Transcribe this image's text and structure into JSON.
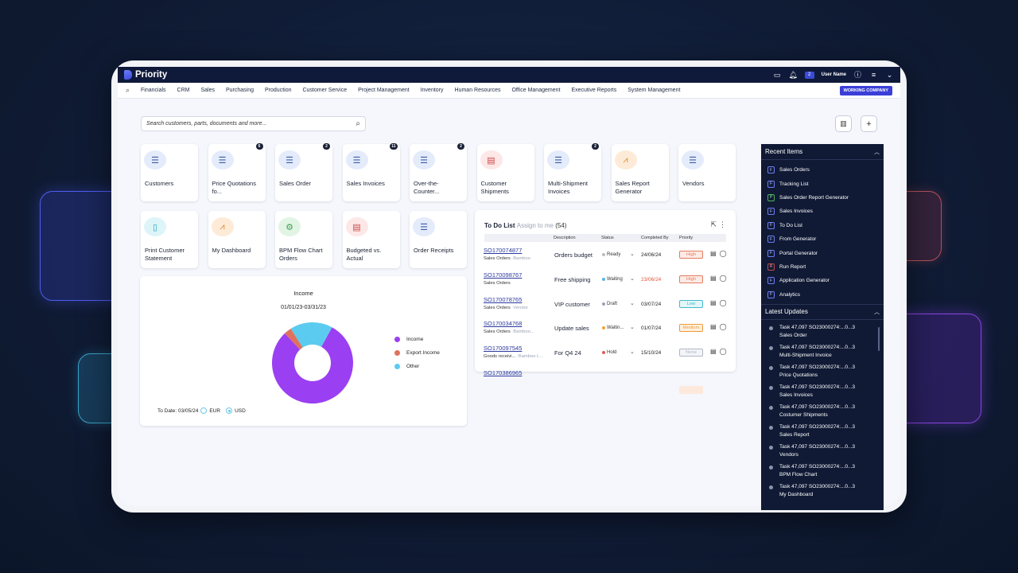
{
  "app": {
    "name": "Priority",
    "user": "User Name",
    "notif_count": "2"
  },
  "menu": {
    "items": [
      "Financials",
      "CRM",
      "Sales",
      "Purchasing",
      "Production",
      "Customer Service",
      "Project Management",
      "Inventory",
      "Human Resources",
      "Office Management",
      "Executive Reports",
      "System Management"
    ],
    "company": "WORKING COMPANY"
  },
  "search": {
    "placeholder": "Search customers, parts, documents and more..."
  },
  "tiles": [
    {
      "label": "Customers",
      "badge": "",
      "icon": "list-icon",
      "color": "blue"
    },
    {
      "label": "Price Quotations fo...",
      "badge": "6",
      "icon": "list-icon",
      "color": "blue"
    },
    {
      "label": "Sales Order",
      "badge": "2",
      "icon": "list-icon",
      "color": "blue"
    },
    {
      "label": "Sales Invoices",
      "badge": "11",
      "icon": "list-icon",
      "color": "blue"
    },
    {
      "label": "Over-the-Counter...",
      "badge": "2",
      "icon": "list-icon",
      "color": "blue"
    },
    {
      "label": "Customer Shipments",
      "badge": "",
      "icon": "report-icon",
      "color": "red"
    },
    {
      "label": "Multi-Shipment Invoices",
      "badge": "2",
      "icon": "list-icon",
      "color": "blue"
    },
    {
      "label": "Sales Report Generator",
      "badge": "",
      "icon": "chart-icon",
      "color": "orange"
    },
    {
      "label": "Vendors",
      "badge": "",
      "icon": "list-icon",
      "color": "blue"
    },
    {
      "label": "Print Customer Statement",
      "badge": "",
      "icon": "document-icon",
      "color": "cyan"
    },
    {
      "label": "My Dashboard",
      "badge": "",
      "icon": "chart-icon",
      "color": "orange"
    },
    {
      "label": "BPM Flow Chart Orders",
      "badge": "",
      "icon": "gear-icon",
      "color": "green"
    },
    {
      "label": "Budgeted vs. Actual",
      "badge": "",
      "icon": "report-icon",
      "color": "red"
    },
    {
      "label": "Order Receipts",
      "badge": "",
      "icon": "list-icon",
      "color": "blue"
    }
  ],
  "income": {
    "title": "Income",
    "range": "01/01/23-03/31/23",
    "to_date_label": "To Date: 03/05/24",
    "currencies": [
      "EUR",
      "USD"
    ],
    "selected_currency": "USD",
    "legend": [
      {
        "name": "Income",
        "color": "#9b3ff2"
      },
      {
        "name": "Export Income",
        "color": "#e0715f"
      },
      {
        "name": "Other",
        "color": "#5ccbf0"
      }
    ]
  },
  "chart_data": {
    "type": "pie",
    "title": "Income",
    "subtitle": "01/01/23-03/31/23",
    "categories": [
      "Income",
      "Export Income",
      "Other"
    ],
    "values": [
      80,
      3,
      17
    ],
    "donut": true,
    "legend_position": "right"
  },
  "todo": {
    "title": "To Do List",
    "subtitle": "Assign to me",
    "count": "(54)",
    "columns": [
      "Description",
      "Status",
      "Completed By",
      "Priority"
    ],
    "rows": [
      {
        "code": "SO170074877",
        "type": "Sales Orders",
        "sub": "Bamboo",
        "desc": "Orders budget",
        "status": "Ready",
        "status_color": "#bbbbbb",
        "date": "24/06/24",
        "date_color": "#222222",
        "priority": "High",
        "pri_color": "#e57b5e",
        "pri_bg": "#fdebe5"
      },
      {
        "code": "SO170098767",
        "type": "Sales Orders",
        "sub": "",
        "desc": "Free shipping",
        "status": "Waiting",
        "status_color": "#5ab4e5",
        "date": "23/06/24",
        "date_color": "#e0563a",
        "priority": "High",
        "pri_color": "#e57b5e",
        "pri_bg": "#fdebe5"
      },
      {
        "code": "SO170078765",
        "type": "Sales Orders",
        "sub": "Vendor",
        "desc": "VIP customer",
        "status": "Draft",
        "status_color": "#9aa3b5",
        "date": "03/07/24",
        "date_color": "#222222",
        "priority": "Low",
        "pri_color": "#43b9c9",
        "pri_bg": "#e3f6f9"
      },
      {
        "code": "SO170034768",
        "type": "Sales Orders",
        "sub": "Bamboo...",
        "desc": "Update sales",
        "status": "Waitin...",
        "status_color": "#f0a33a",
        "date": "01/07/24",
        "date_color": "#222222",
        "priority": "Medium",
        "pri_color": "#ef9a3a",
        "pri_bg": "#fef1e0"
      },
      {
        "code": "SO170097545",
        "type": "Goods receivi...",
        "sub": "Bamboo L...",
        "desc": "For Q4 24",
        "status": "Hold",
        "status_color": "#e05a5a",
        "date": "15/10/24",
        "date_color": "#222222",
        "priority": "None",
        "pri_color": "#b0b6c3",
        "pri_bg": "#f4f5f8"
      },
      {
        "code": "SO170386965",
        "type": "",
        "sub": "",
        "desc": "",
        "status": "",
        "status_color": "#ffffff",
        "date": "",
        "date_color": "#222222",
        "priority": "",
        "pri_color": "#f3b18a",
        "pri_bg": "#fde9dc"
      }
    ]
  },
  "recent": {
    "title": "Recent Items",
    "items": [
      {
        "tag": "F",
        "label": "Sales Orders",
        "kind": "blue"
      },
      {
        "tag": "F",
        "label": "Tracking List",
        "kind": "blue"
      },
      {
        "tag": "P",
        "label": "Sales Order Report Generator",
        "kind": "green"
      },
      {
        "tag": "F",
        "label": "Sales Invoices",
        "kind": "blue"
      },
      {
        "tag": "F",
        "label": "To Do List",
        "kind": "blue"
      },
      {
        "tag": "F",
        "label": "From Generator",
        "kind": "blue"
      },
      {
        "tag": "F",
        "label": "Portal Generator",
        "kind": "blue"
      },
      {
        "tag": "R",
        "label": "Run Report",
        "kind": "red"
      },
      {
        "tag": "F",
        "label": "Application Generator",
        "kind": "blue"
      },
      {
        "tag": "F",
        "label": "Analytics",
        "kind": "blue"
      }
    ]
  },
  "updates": {
    "title": "Latest Updates",
    "items": [
      {
        "line1": "Task 47,097 SO23000274:...0...3",
        "line2": "Sales Order"
      },
      {
        "line1": "Task 47,097 SO23000274:...0...3",
        "line2": "Multi-Shipment Invoice"
      },
      {
        "line1": "Task 47,097 SO23000274:...0...3",
        "line2": "Price Quotations"
      },
      {
        "line1": "Task 47,097 SO23000274:...0...3",
        "line2": "Sales Invoices"
      },
      {
        "line1": "Task 47,097 SO23000274:...0...3",
        "line2": "Costumer Shipments"
      },
      {
        "line1": "Task 47,097 SO23000274:...0...3",
        "line2": "Sales Report"
      },
      {
        "line1": "Task 47,097 SO23000274:...0...3",
        "line2": "Vendors"
      },
      {
        "line1": "Task 47,097 SO23000274:...0...3",
        "line2": "BPM Flow Chart"
      },
      {
        "line1": "Task 47,097 SO23000274:...0...3",
        "line2": "My Dashboard"
      }
    ]
  }
}
